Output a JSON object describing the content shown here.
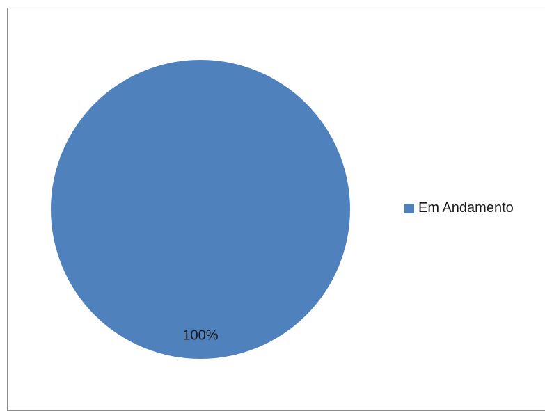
{
  "chart_data": {
    "type": "pie",
    "categories": [
      "Em Andamento"
    ],
    "values": [
      100
    ],
    "data_labels": [
      "100%"
    ],
    "colors": [
      "#4f81bd"
    ],
    "legend": {
      "placement": "right",
      "entries": [
        "Em Andamento"
      ]
    }
  }
}
